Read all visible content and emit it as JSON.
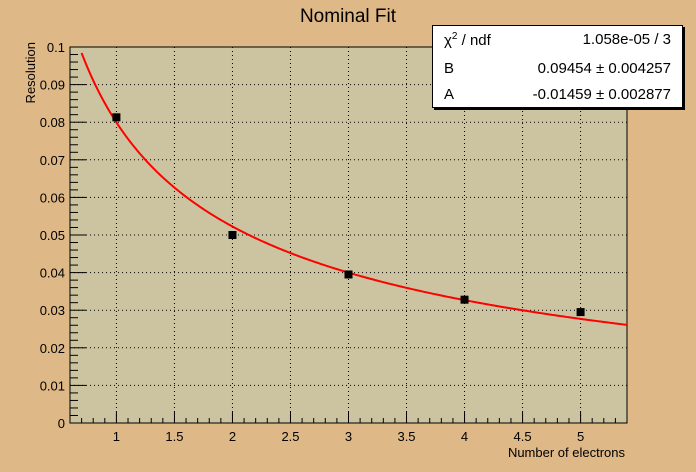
{
  "title": "Nominal Fit",
  "stats_box": {
    "rows": [
      {
        "key_prefix": "χ",
        "key_sup": "2",
        "key_suffix": " / ndf",
        "value": "1.058e-05 / 3"
      },
      {
        "key_prefix": "B",
        "key_sup": "",
        "key_suffix": "",
        "value": "0.09454 ± 0.004257"
      },
      {
        "key_prefix": "A",
        "key_sup": "",
        "key_suffix": "",
        "value": "-0.01459 ± 0.002877"
      }
    ]
  },
  "chart_data": {
    "type": "scatter",
    "title": "Nominal Fit",
    "xlabel": "Number of electrons",
    "ylabel": "Resolution",
    "xlim": [
      0.6,
      5.4
    ],
    "ylim": [
      0,
      0.1
    ],
    "grid": true,
    "x_ticks": [
      "1",
      "1.5",
      "2",
      "2.5",
      "3",
      "3.5",
      "4",
      "4.5",
      "5"
    ],
    "y_ticks": [
      "0",
      "0.01",
      "0.02",
      "0.03",
      "0.04",
      "0.05",
      "0.06",
      "0.07",
      "0.08",
      "0.09",
      "0.1"
    ],
    "points": [
      {
        "x": 1,
        "y": 0.0813
      },
      {
        "x": 2,
        "y": 0.05
      },
      {
        "x": 3,
        "y": 0.0395
      },
      {
        "x": 4,
        "y": 0.0328
      },
      {
        "x": 5,
        "y": 0.0295
      }
    ],
    "fit": {
      "formula": "B/sqrt(x) + A",
      "B": 0.09454,
      "A": -0.01459,
      "x_range": [
        0.68,
        5.4
      ]
    },
    "colors": {
      "frame_bg": "#dfb887",
      "plot_bg": "#ccc4a0",
      "fit_line": "#ff0000",
      "marker": "#000000"
    }
  }
}
